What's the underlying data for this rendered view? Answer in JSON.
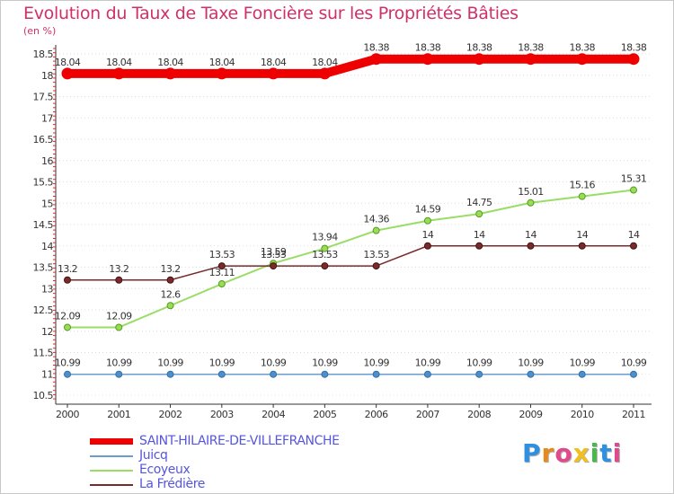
{
  "header": {
    "title": "Evolution du Taux de Taxe Foncière sur les Propriétés Bâties",
    "unit": "(en %)"
  },
  "chart_data": {
    "type": "line",
    "title": "Evolution du Taux de Taxe Foncière sur les Propriétés Bâties",
    "ylabel": "(en %)",
    "xlabel": "",
    "x": [
      "2000",
      "2001",
      "2002",
      "2003",
      "2004",
      "2005",
      "2006",
      "2007",
      "2008",
      "2009",
      "2010",
      "2011"
    ],
    "ylim": [
      10.5,
      18.5
    ],
    "yticks": [
      "10.5",
      "11",
      "11.5",
      "12",
      "12.5",
      "13",
      "13.5",
      "14",
      "14.5",
      "15",
      "15.5",
      "16",
      "16.5",
      "17",
      "17.5",
      "18",
      "18.5"
    ],
    "grid": "horizontal dotted",
    "series": [
      {
        "name": "SAINT-HILAIRE-DE-VILLEFRANCHE",
        "color": "#ee0000",
        "values": [
          18.04,
          18.04,
          18.04,
          18.04,
          18.04,
          18.04,
          18.38,
          18.38,
          18.38,
          18.38,
          18.38,
          18.38
        ],
        "labels": [
          "18.04",
          "18.04",
          "18.04",
          "18.04",
          "18.04",
          "18.04",
          "18.38",
          "18.38",
          "18.38",
          "18.38",
          "18.38",
          "18.38"
        ]
      },
      {
        "name": "Juicq",
        "color": "#6a9ed2",
        "values": [
          10.99,
          10.99,
          10.99,
          10.99,
          10.99,
          10.99,
          10.99,
          10.99,
          10.99,
          10.99,
          10.99,
          10.99
        ],
        "labels": [
          "10.99",
          "10.99",
          "10.99",
          "10.99",
          "10.99",
          "10.99",
          "10.99",
          "10.99",
          "10.99",
          "10.99",
          "10.99",
          "10.99"
        ]
      },
      {
        "name": "Ecoyeux",
        "color": "#99dd66",
        "values": [
          12.09,
          12.09,
          12.6,
          13.11,
          13.59,
          13.94,
          14.36,
          14.59,
          14.75,
          15.01,
          15.16,
          15.31
        ],
        "labels": [
          "12.09",
          "12.09",
          "12.6",
          "13.11",
          "13.59",
          "13.94",
          "14.36",
          "14.59",
          "14.75",
          "15.01",
          "15.16",
          "15.31"
        ]
      },
      {
        "name": "La Frédière",
        "color": "#7a2a2a",
        "values": [
          13.2,
          13.2,
          13.2,
          13.53,
          13.53,
          13.53,
          13.53,
          14,
          14,
          14,
          14,
          14
        ],
        "labels": [
          "13.2",
          "13.2",
          "13.2",
          "13.53",
          "13.53",
          "13.53",
          "13.53",
          "14",
          "14",
          "14",
          "14",
          "14"
        ]
      }
    ],
    "legend_position": "bottom-left"
  },
  "legend": {
    "items": [
      {
        "label": "SAINT-HILAIRE-DE-VILLEFRANCHE",
        "color": "#ee0000"
      },
      {
        "label": "Juicq",
        "color": "#6a9ed2"
      },
      {
        "label": "Ecoyeux",
        "color": "#99dd66"
      },
      {
        "label": "La Frédière",
        "color": "#7a2a2a"
      }
    ]
  },
  "logo": {
    "letters": [
      "P",
      "r",
      "o",
      "x",
      "i",
      "t",
      "i"
    ],
    "colors": [
      "#2f8fe0",
      "#e88a1a",
      "#e04a8a",
      "#f0c020",
      "#49b84a",
      "#2f8fe0",
      "#e04a8a"
    ]
  }
}
